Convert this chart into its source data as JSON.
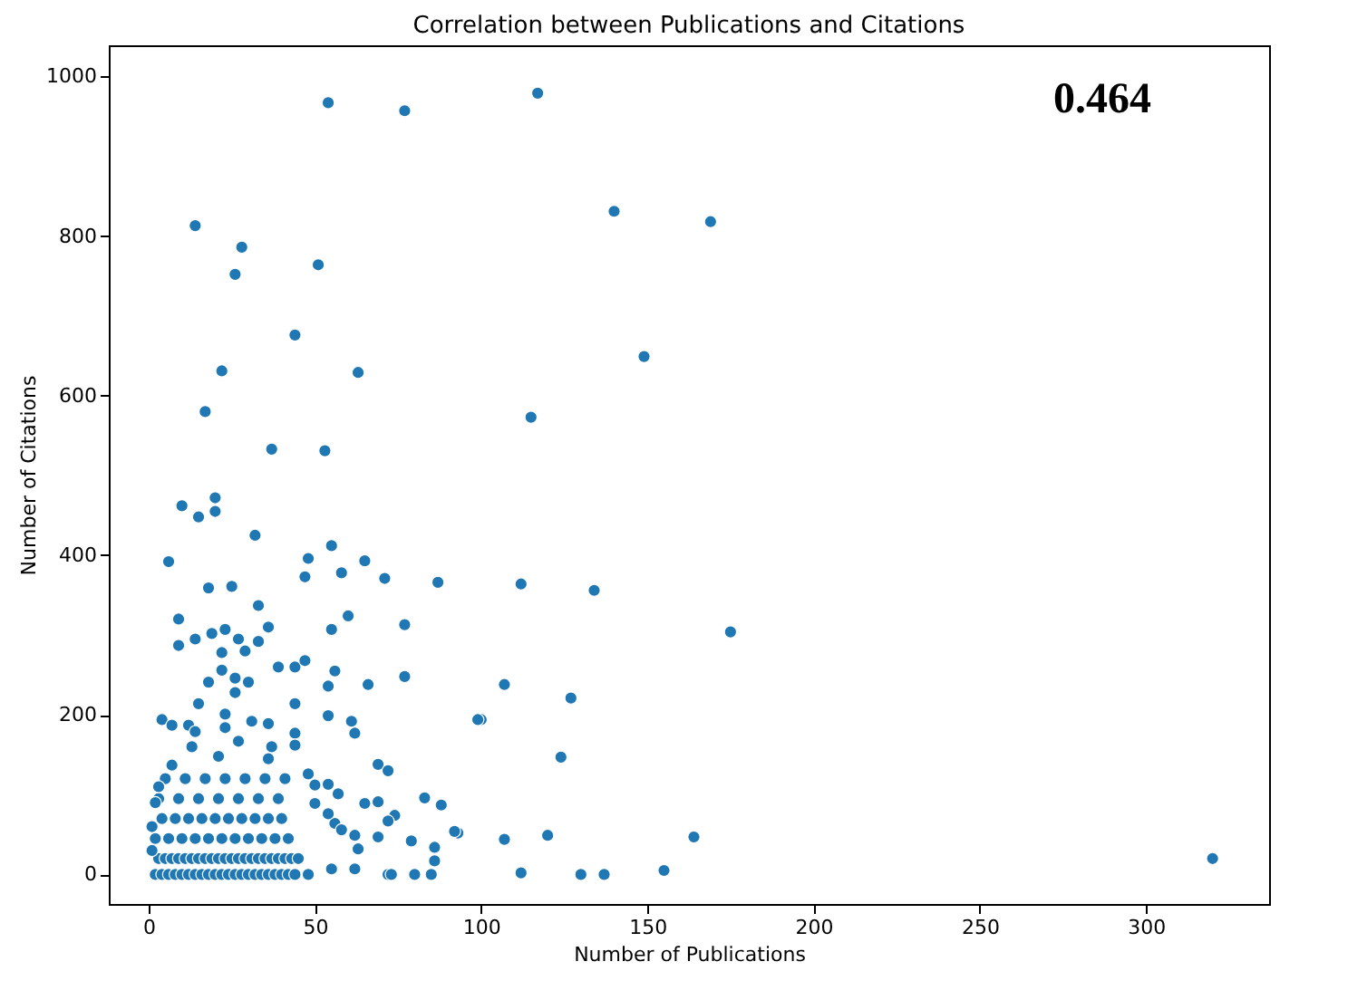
{
  "chart_data": {
    "type": "scatter",
    "title": "Correlation between Publications and Citations",
    "xlabel": "Number of Publications",
    "ylabel": "Number of Citations",
    "annotations": [
      "0.464"
    ],
    "xlim": [
      -12,
      337
    ],
    "ylim": [
      -37,
      1039
    ],
    "xticks": [
      0,
      50,
      100,
      150,
      200,
      250,
      300
    ],
    "yticks": [
      0,
      200,
      400,
      600,
      800,
      1000
    ],
    "grid": false,
    "marker": "circle",
    "series": [
      {
        "color": "#1f77b4",
        "x": [
          54,
          77,
          117,
          140,
          169,
          14,
          28,
          26,
          51,
          22,
          44,
          63,
          17,
          115,
          37,
          53,
          149,
          175,
          112,
          134,
          107,
          127,
          100,
          124,
          93,
          107,
          120,
          164,
          112,
          130,
          137,
          155,
          320,
          10,
          20,
          15,
          20,
          32,
          55,
          6,
          48,
          65,
          58,
          47,
          71,
          87,
          18,
          25,
          33,
          9,
          60,
          55,
          77,
          36,
          14,
          9,
          19,
          23,
          27,
          29,
          33,
          22,
          39,
          44,
          47,
          56,
          77,
          22,
          18,
          26,
          30,
          26,
          54,
          66,
          15,
          44,
          99,
          4,
          7,
          12,
          23,
          31,
          36,
          54,
          61,
          62,
          14,
          23,
          37,
          13,
          44,
          44,
          27,
          21,
          36,
          7,
          69,
          72,
          48,
          83,
          88,
          92,
          74,
          72,
          69,
          79,
          86,
          86,
          80,
          85,
          72,
          73,
          62,
          63,
          62,
          56,
          54,
          50,
          57,
          65,
          69,
          50,
          54,
          58,
          55,
          48,
          2,
          4,
          6,
          8,
          10,
          12,
          14,
          16,
          18,
          20,
          22,
          24,
          26,
          28,
          30,
          32,
          34,
          36,
          38,
          40,
          42,
          44,
          3,
          5,
          7,
          9,
          11,
          13,
          15,
          17,
          19,
          21,
          23,
          25,
          27,
          29,
          31,
          33,
          35,
          37,
          39,
          41,
          43,
          45,
          2,
          6,
          10,
          14,
          18,
          22,
          26,
          30,
          34,
          38,
          42,
          4,
          8,
          12,
          16,
          20,
          24,
          28,
          32,
          36,
          40,
          3,
          9,
          15,
          21,
          27,
          33,
          39,
          5,
          11,
          17,
          23,
          29,
          35,
          41,
          1,
          1,
          2,
          3
        ],
        "values": [
          967,
          957,
          979,
          831,
          818,
          813,
          786,
          752,
          764,
          631,
          676,
          629,
          580,
          573,
          533,
          531,
          649,
          304,
          364,
          356,
          238,
          221,
          194,
          147,
          52,
          44,
          49,
          47,
          2,
          0,
          0,
          5,
          20,
          462,
          472,
          448,
          455,
          425,
          412,
          392,
          396,
          393,
          378,
          373,
          371,
          366,
          359,
          361,
          337,
          320,
          324,
          307,
          313,
          310,
          295,
          287,
          302,
          307,
          295,
          280,
          292,
          278,
          260,
          260,
          268,
          255,
          248,
          256,
          241,
          246,
          241,
          228,
          236,
          238,
          214,
          214,
          194,
          194,
          187,
          187,
          201,
          192,
          189,
          199,
          192,
          177,
          179,
          184,
          160,
          160,
          177,
          162,
          167,
          148,
          145,
          137,
          138,
          130,
          126,
          96,
          87,
          54,
          74,
          67,
          47,
          42,
          34,
          17,
          0,
          0,
          0,
          0,
          7,
          32,
          49,
          64,
          113,
          112,
          101,
          89,
          91,
          89,
          76,
          56,
          7,
          0,
          0,
          0,
          0,
          0,
          0,
          0,
          0,
          0,
          0,
          0,
          0,
          0,
          0,
          0,
          0,
          0,
          0,
          0,
          0,
          0,
          0,
          0,
          20,
          20,
          20,
          20,
          20,
          20,
          20,
          20,
          20,
          20,
          20,
          20,
          20,
          20,
          20,
          20,
          20,
          20,
          20,
          20,
          20,
          20,
          45,
          45,
          45,
          45,
          45,
          45,
          45,
          45,
          45,
          45,
          45,
          70,
          70,
          70,
          70,
          70,
          70,
          70,
          70,
          70,
          70,
          95,
          95,
          95,
          95,
          95,
          95,
          95,
          120,
          120,
          120,
          120,
          120,
          120,
          120,
          30,
          60,
          90,
          110
        ]
      }
    ]
  }
}
